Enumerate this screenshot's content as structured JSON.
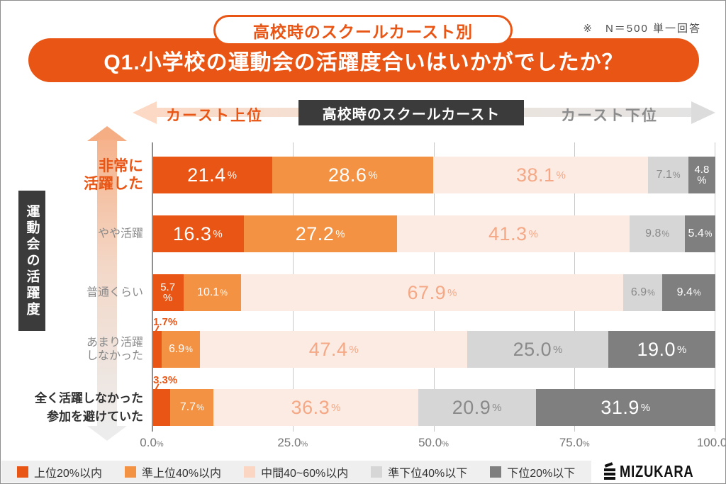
{
  "header": {
    "badge": "高校時のスクールカースト別",
    "note": "※　N＝500 単一回答",
    "title": "Q1.小学校の運動会の活躍度合いはいかがでしたか？"
  },
  "caste_axis": {
    "left_label": "カースト上位",
    "center_label": "高校時のスクールカースト",
    "right_label": "カースト下位"
  },
  "y_axis_title": "運動会の活躍度",
  "chart_data": {
    "type": "bar",
    "orientation": "horizontal",
    "stacked": true,
    "unit": "%",
    "xlim": [
      0,
      100
    ],
    "x_ticks": [
      "0.0%",
      "25.0%",
      "50.0%",
      "75.0%",
      "100.0%"
    ],
    "grid": true,
    "categories": [
      {
        "label": "非常に\n活躍した",
        "emphasis": "orange"
      },
      {
        "label": "やや活躍",
        "emphasis": "gray"
      },
      {
        "label": "普通くらい",
        "emphasis": "gray"
      },
      {
        "label": "あまり活躍\nしなかった",
        "emphasis": "gray"
      },
      {
        "label": "全く活躍しなかった\n参加を避けていた",
        "emphasis": "dark"
      }
    ],
    "series": [
      {
        "name": "上位20%以内",
        "color": "#e95514",
        "label_color": "#ffffff",
        "values": [
          21.4,
          16.3,
          5.7,
          1.7,
          3.3
        ]
      },
      {
        "name": "準上位40%以内",
        "color": "#f39242",
        "label_color": "#ffffff",
        "values": [
          28.6,
          27.2,
          10.1,
          6.9,
          7.7
        ]
      },
      {
        "name": "中間40~60%以内",
        "color": "#fcebe2",
        "label_color": "#f5a886",
        "values": [
          38.1,
          41.3,
          67.9,
          47.4,
          36.3
        ]
      },
      {
        "name": "準下位40%以下",
        "color": "#d6d6d6",
        "label_color": "#8a8a8a",
        "values": [
          7.1,
          9.8,
          6.9,
          25.0,
          20.9
        ]
      },
      {
        "name": "下位20%以下",
        "color": "#7f7f7f",
        "label_color": "#ffffff",
        "values": [
          4.8,
          5.4,
          9.4,
          19.0,
          31.9
        ]
      }
    ],
    "label_layout": [
      [
        "large",
        "large",
        "large",
        "small",
        "stacked"
      ],
      [
        "large",
        "large",
        "large",
        "small",
        "small"
      ],
      [
        "stacked",
        "small",
        "large",
        "small",
        "small"
      ],
      [
        "outside",
        "small",
        "large",
        "large",
        "large"
      ],
      [
        "outside",
        "small",
        "large",
        "large",
        "large"
      ]
    ]
  },
  "legend": {
    "items": [
      {
        "label": "上位20%以内",
        "color": "#e95514"
      },
      {
        "label": "準上位40%以内",
        "color": "#f39242"
      },
      {
        "label": "中間40~60%以内",
        "color": "#fbd7c3"
      },
      {
        "label": "準下位40%以下",
        "color": "#d6d6d6"
      },
      {
        "label": "下位20%以下",
        "color": "#7f7f7f"
      }
    ]
  },
  "footer": {
    "logo_text": "MIZUKARA"
  },
  "colors": {
    "accent_orange": "#e95514",
    "dark_box": "#3b3b3b",
    "legend_strip": "#efefef",
    "grid_line": "#c8c8c8"
  }
}
